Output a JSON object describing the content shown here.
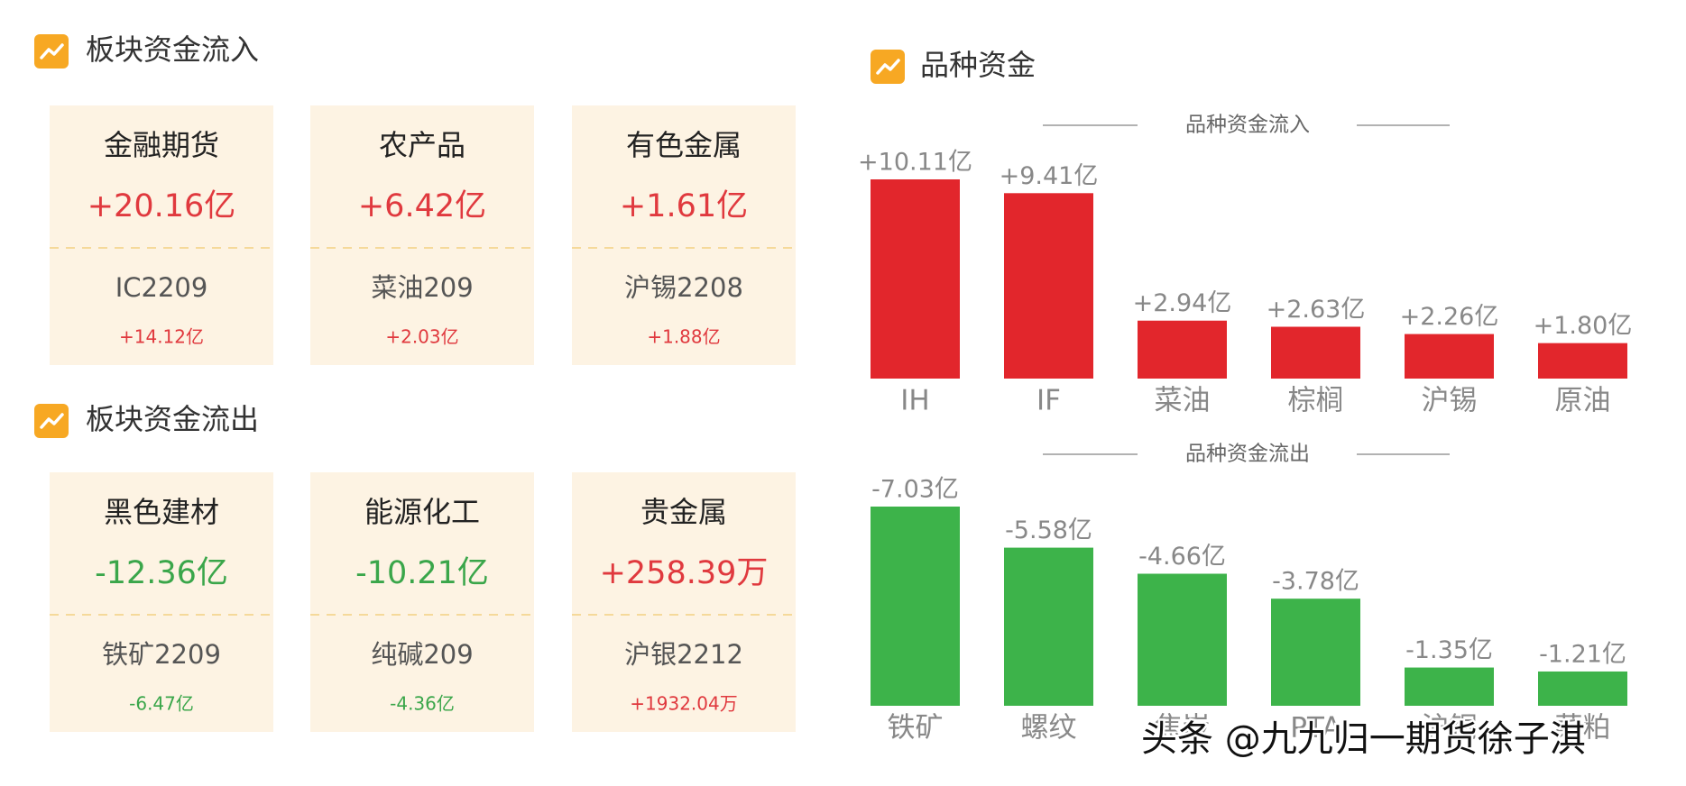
{
  "sections": [
    {
      "title": "板块资金流入",
      "cards": [
        {
          "name": "金融期货",
          "amount": "+20.16亿",
          "contract": "IC2209",
          "contract_amount": "+14.12亿",
          "color": "#e0393e"
        },
        {
          "name": "农产品",
          "amount": "+6.42亿",
          "contract": "菜油209",
          "contract_amount": "+2.03亿",
          "color": "#e0393e"
        },
        {
          "name": "有色金属",
          "amount": "+1.61亿",
          "contract": "沪锡2208",
          "contract_amount": "+1.88亿",
          "color": "#e0393e"
        }
      ]
    },
    {
      "title": "板块资金流出",
      "cards": [
        {
          "name": "黑色建材",
          "amount": "-12.36亿",
          "contract": "铁矿2209",
          "contract_amount": "-6.47亿",
          "color": "#3aa64a"
        },
        {
          "name": "能源化工",
          "amount": "-10.21亿",
          "contract": "纯碱209",
          "contract_amount": "-4.36亿",
          "color": "#3aa64a"
        },
        {
          "name": "贵金属",
          "amount": "+258.39万",
          "contract": "沪银2212",
          "contract_amount": "+1932.04万",
          "color": "#e0393e"
        }
      ]
    }
  ],
  "chart_section_title": "品种资金",
  "chart_data": [
    {
      "type": "bar",
      "title": "品种资金流入",
      "categories": [
        "IH",
        "IF",
        "菜油",
        "棕榈",
        "沪锡",
        "原油"
      ],
      "values": [
        10.11,
        9.41,
        2.94,
        2.63,
        2.26,
        1.8
      ],
      "value_labels": [
        "+10.11亿",
        "+9.41亿",
        "+2.94亿",
        "+2.63亿",
        "+2.26亿",
        "+1.80亿"
      ],
      "color": "#e2262c"
    },
    {
      "type": "bar",
      "title": "品种资金流出",
      "categories": [
        "铁矿",
        "螺纹",
        "焦炭",
        "PTA",
        "沪铜",
        "菜粕"
      ],
      "values": [
        -7.03,
        -5.58,
        -4.66,
        -3.78,
        -1.35,
        -1.21
      ],
      "value_labels": [
        "-7.03亿",
        "-5.58亿",
        "-4.66亿",
        "-3.78亿",
        "-1.35亿",
        "-1.21亿"
      ],
      "color": "#3db34a"
    }
  ],
  "watermark": "头条 @九九归一期货徐子淇"
}
